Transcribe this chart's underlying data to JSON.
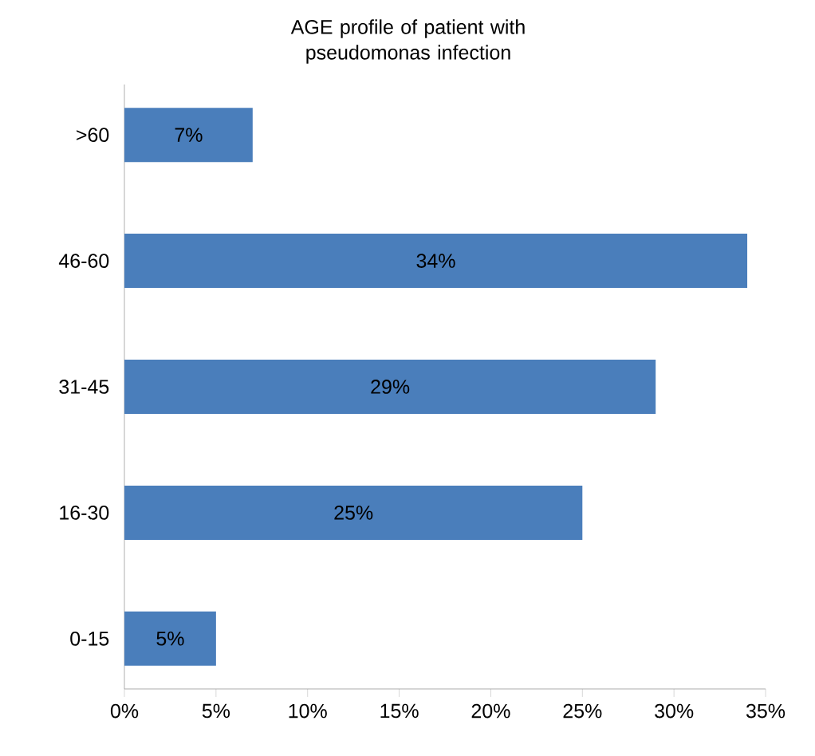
{
  "chart_data": {
    "type": "bar",
    "orientation": "horizontal",
    "title": "AGE profile of patient with pseudomonas infection",
    "categories": [
      ">60",
      "46-60",
      "31-45",
      "16-30",
      "0-15"
    ],
    "values": [
      7,
      34,
      29,
      25,
      5
    ],
    "value_labels": [
      "7%",
      "34%",
      "29%",
      "25%",
      "5%"
    ],
    "color": "#4a7ebb",
    "xlim": [
      0,
      35
    ],
    "xticks": [
      {
        "value": 0,
        "label": "0%"
      },
      {
        "value": 5,
        "label": "5%"
      },
      {
        "value": 10,
        "label": "10%"
      },
      {
        "value": 15,
        "label": "15%"
      },
      {
        "value": 20,
        "label": "20%"
      },
      {
        "value": 25,
        "label": "25%"
      },
      {
        "value": 30,
        "label": "30%"
      },
      {
        "value": 35,
        "label": "35%"
      }
    ],
    "grid": false
  }
}
